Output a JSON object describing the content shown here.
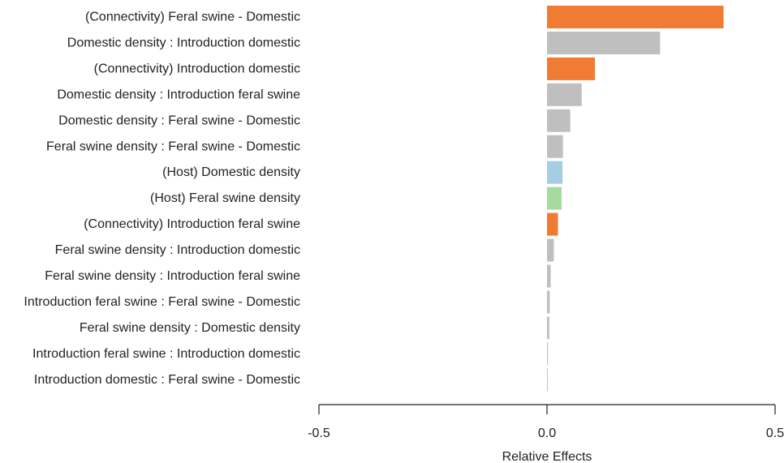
{
  "chart_data": {
    "type": "bar",
    "orientation": "horizontal",
    "title": "",
    "xlabel": "Relative Effects",
    "ylabel": "",
    "xlim": [
      -0.5,
      0.5
    ],
    "xticks": [
      -0.5,
      0.0,
      0.5
    ],
    "xtick_labels": [
      "-0.5",
      "0.0",
      "0.5"
    ],
    "grid": false,
    "legend": "none",
    "colors": {
      "connectivity": "#f07b32",
      "interaction": "#bfbfbf",
      "host_domestic": "#a6cde3",
      "host_feral": "#a6dba0",
      "axis": "#222222"
    },
    "categories": [
      "(Connectivity) Feral swine - Domestic",
      "Domestic density : Introduction domestic",
      "(Connectivity) Introduction domestic",
      "Domestic density : Introduction feral swine",
      "Domestic density : Feral swine - Domestic",
      "Feral swine density : Feral swine - Domestic",
      "(Host) Domestic density",
      "(Host) Feral swine density",
      "(Connectivity) Introduction feral swine",
      "Feral swine density : Introduction domestic",
      "Feral swine density : Introduction feral swine",
      "Introduction feral swine : Feral swine - Domestic",
      "Feral swine density : Domestic density",
      "Introduction feral swine : Introduction domestic",
      "Introduction domestic : Feral swine - Domestic"
    ],
    "values": [
      0.387,
      0.248,
      0.105,
      0.076,
      0.051,
      0.035,
      0.034,
      0.032,
      0.024,
      0.015,
      0.008,
      0.006,
      0.005,
      0.002,
      0.001
    ],
    "bar_colors": [
      "#f07b32",
      "#bfbfbf",
      "#f07b32",
      "#bfbfbf",
      "#bfbfbf",
      "#bfbfbf",
      "#a6cde3",
      "#a6dba0",
      "#f07b32",
      "#bfbfbf",
      "#bfbfbf",
      "#bfbfbf",
      "#bfbfbf",
      "#bfbfbf",
      "#bfbfbf"
    ]
  }
}
